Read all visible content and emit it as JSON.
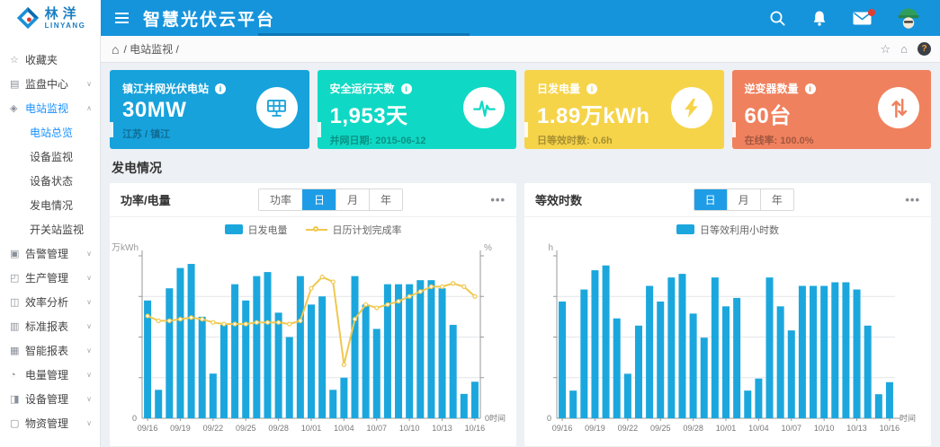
{
  "header": {
    "brand": {
      "name": "林洋",
      "sub": "LINYANG"
    },
    "title": "智慧光伏云平台",
    "icons": [
      "search-icon",
      "bell-icon",
      "mail-icon",
      "user-avatar"
    ]
  },
  "breadcrumb": {
    "home_glyph": "⌂",
    "path": "/ 电站监视 /",
    "right": {
      "favorite_glyph": "☆",
      "home_glyph": "⌂",
      "help_glyph": "?"
    }
  },
  "sidebar": {
    "items": [
      {
        "id": "favorites",
        "label": "收藏夹",
        "icon": "star-icon",
        "glyph": "☆"
      },
      {
        "id": "monitor-center",
        "label": "监盘中心",
        "icon": "monitor-icon",
        "glyph": "▤",
        "chevron": "down"
      },
      {
        "id": "station-monitor",
        "label": "电站监视",
        "icon": "station-icon",
        "glyph": "◈",
        "chevron": "up",
        "active": true,
        "children": [
          {
            "id": "station-overview",
            "label": "电站总览",
            "active": true
          },
          {
            "id": "device-monitor",
            "label": "设备监视"
          },
          {
            "id": "device-status",
            "label": "设备状态"
          },
          {
            "id": "generation-status",
            "label": "发电情况"
          },
          {
            "id": "switch-station-monitor",
            "label": "开关站监视"
          }
        ]
      },
      {
        "id": "alarm-mgmt",
        "label": "告警管理",
        "icon": "alarm-icon",
        "glyph": "▣",
        "chevron": "down"
      },
      {
        "id": "production-mgmt",
        "label": "生产管理",
        "icon": "production-icon",
        "glyph": "◰",
        "chevron": "down"
      },
      {
        "id": "efficiency-analysis",
        "label": "效率分析",
        "icon": "chart-icon",
        "glyph": "◫",
        "chevron": "down"
      },
      {
        "id": "standard-report",
        "label": "标准报表",
        "icon": "report-icon",
        "glyph": "▥",
        "chevron": "down"
      },
      {
        "id": "smart-report",
        "label": "智能报表",
        "icon": "smart-report-icon",
        "glyph": "▦",
        "chevron": "down"
      },
      {
        "id": "energy-mgmt",
        "label": "电量管理",
        "icon": "clock-icon",
        "glyph": "◔",
        "chevron": "down"
      },
      {
        "id": "device-mgmt",
        "label": "设备管理",
        "icon": "device-icon",
        "glyph": "◨",
        "chevron": "down"
      },
      {
        "id": "material-mgmt",
        "label": "物资管理",
        "icon": "document-icon",
        "glyph": "▢",
        "chevron": "down"
      }
    ]
  },
  "cards": [
    {
      "id": "station-card",
      "title": "镇江并网光伏电站",
      "value": "30MW",
      "subtitle": "江苏 / 镇江",
      "color": "#17a2dc",
      "icon": "solar-panel-icon",
      "info_glyph": "i"
    },
    {
      "id": "safe-days-card",
      "title": "安全运行天数",
      "value": "1,953天",
      "subtitle": "并网日期: 2015-06-12",
      "color": "#0fd9c5",
      "icon": "pulse-icon",
      "info_glyph": "i"
    },
    {
      "id": "daily-energy-card",
      "title": "日发电量",
      "value": "1.89万kWh",
      "subtitle": "日等效时数: 0.6h",
      "color": "#f6d44a",
      "icon": "bolt-icon",
      "info_glyph": "i"
    },
    {
      "id": "inverter-card",
      "title": "逆变器数量",
      "value": "60台",
      "subtitle": "在线率: 100.0%",
      "color": "#f0815e",
      "icon": "up-down-arrows-icon",
      "info_glyph": "i"
    }
  ],
  "section_title": "发电情况",
  "colors": {
    "bar": "#1ba7dd",
    "line": "#f0c84f",
    "header": "#1594dc",
    "tab_active": "#1e9de6"
  },
  "chart_data": [
    {
      "type": "bar",
      "title": "功率/电量",
      "tabs": [
        "功率",
        "日",
        "月",
        "年"
      ],
      "active_tab": "日",
      "menu": "•••",
      "legend_position": "top-center",
      "grid": true,
      "x": [
        "09/16",
        "09/17",
        "09/18",
        "09/19",
        "09/20",
        "09/21",
        "09/22",
        "09/23",
        "09/24",
        "09/25",
        "09/26",
        "09/27",
        "09/28",
        "09/29",
        "09/30",
        "10/01",
        "10/02",
        "10/03",
        "10/04",
        "10/05",
        "10/06",
        "10/07",
        "10/08",
        "10/09",
        "10/10",
        "10/11",
        "10/12",
        "10/13",
        "10/14",
        "10/15",
        "10/16"
      ],
      "x_tick_every": 3,
      "xlabel": "时间",
      "origin_label": "0",
      "right_origin_label": "0时间",
      "ylabel_left": "万kWh",
      "ylabel_right": "%",
      "ylim_left": [
        0,
        4
      ],
      "ylim_right": [
        0,
        100
      ],
      "series": [
        {
          "name": "日发电量",
          "type": "bar",
          "unit": "万kWh",
          "values": [
            2.9,
            0.7,
            3.2,
            3.7,
            3.8,
            2.5,
            1.1,
            2.3,
            3.3,
            2.9,
            3.5,
            3.6,
            2.6,
            2.0,
            3.5,
            2.8,
            3.0,
            0.7,
            1.0,
            3.5,
            2.8,
            2.2,
            3.3,
            3.3,
            3.3,
            3.4,
            3.4,
            3.2,
            2.3,
            0.6,
            0.9
          ]
        },
        {
          "name": "日历计划完成率",
          "type": "line",
          "unit": "%",
          "values": [
            63,
            60,
            60,
            61,
            62,
            61,
            59,
            58,
            58,
            58,
            59,
            59,
            59,
            58,
            60,
            80,
            87,
            84,
            33,
            61,
            70,
            68,
            70,
            72,
            75,
            78,
            81,
            81,
            83,
            81,
            75
          ]
        }
      ]
    },
    {
      "type": "bar",
      "title": "等效时数",
      "tabs": [
        "日",
        "月",
        "年"
      ],
      "active_tab": "日",
      "menu": "•••",
      "legend_position": "top-center",
      "grid": true,
      "x": [
        "09/16",
        "09/17",
        "09/18",
        "09/19",
        "09/20",
        "09/21",
        "09/22",
        "09/23",
        "09/24",
        "09/25",
        "09/26",
        "09/27",
        "09/28",
        "09/29",
        "09/30",
        "10/01",
        "10/02",
        "10/03",
        "10/04",
        "10/05",
        "10/06",
        "10/07",
        "10/08",
        "10/09",
        "10/10",
        "10/11",
        "10/12",
        "10/13",
        "10/14",
        "10/15",
        "10/16"
      ],
      "x_tick_every": 3,
      "xlabel": "时间",
      "origin_label": "0",
      "right_origin_label": "时间",
      "ylabel_left": "h",
      "ylim_left": [
        0,
        1.35
      ],
      "series": [
        {
          "name": "日等效利用小时数",
          "type": "bar",
          "unit": "h",
          "values": [
            0.97,
            0.23,
            1.07,
            1.23,
            1.27,
            0.83,
            0.37,
            0.77,
            1.1,
            0.97,
            1.17,
            1.2,
            0.87,
            0.67,
            1.17,
            0.93,
            1.0,
            0.23,
            0.33,
            1.17,
            0.93,
            0.73,
            1.1,
            1.1,
            1.1,
            1.13,
            1.13,
            1.07,
            0.77,
            0.2,
            0.3
          ]
        }
      ]
    }
  ]
}
